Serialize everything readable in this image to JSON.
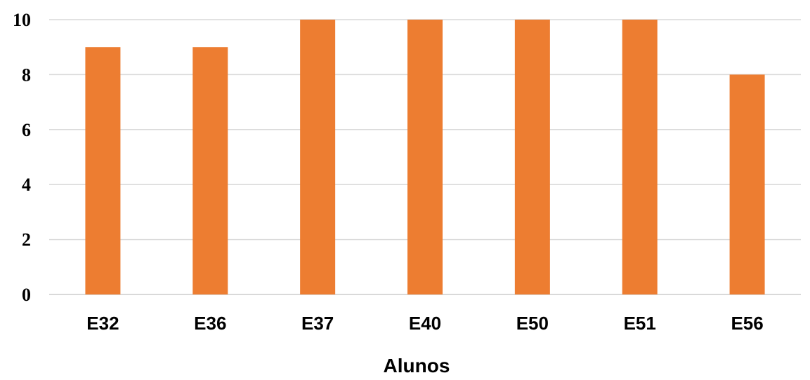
{
  "chart_data": {
    "type": "bar",
    "categories": [
      "E32",
      "E36",
      "E37",
      "E40",
      "E50",
      "E51",
      "E56"
    ],
    "values": [
      9,
      9,
      10,
      10,
      10,
      10,
      8
    ],
    "title": "",
    "xlabel": "Alunos",
    "ylabel": "",
    "ylim": [
      0,
      10
    ],
    "yticks": [
      "0",
      "2",
      "4",
      "6",
      "8",
      "10"
    ],
    "grid": true,
    "legend": "none",
    "bar_color": "#ED7D31",
    "grid_color": "#D9D9D9"
  }
}
